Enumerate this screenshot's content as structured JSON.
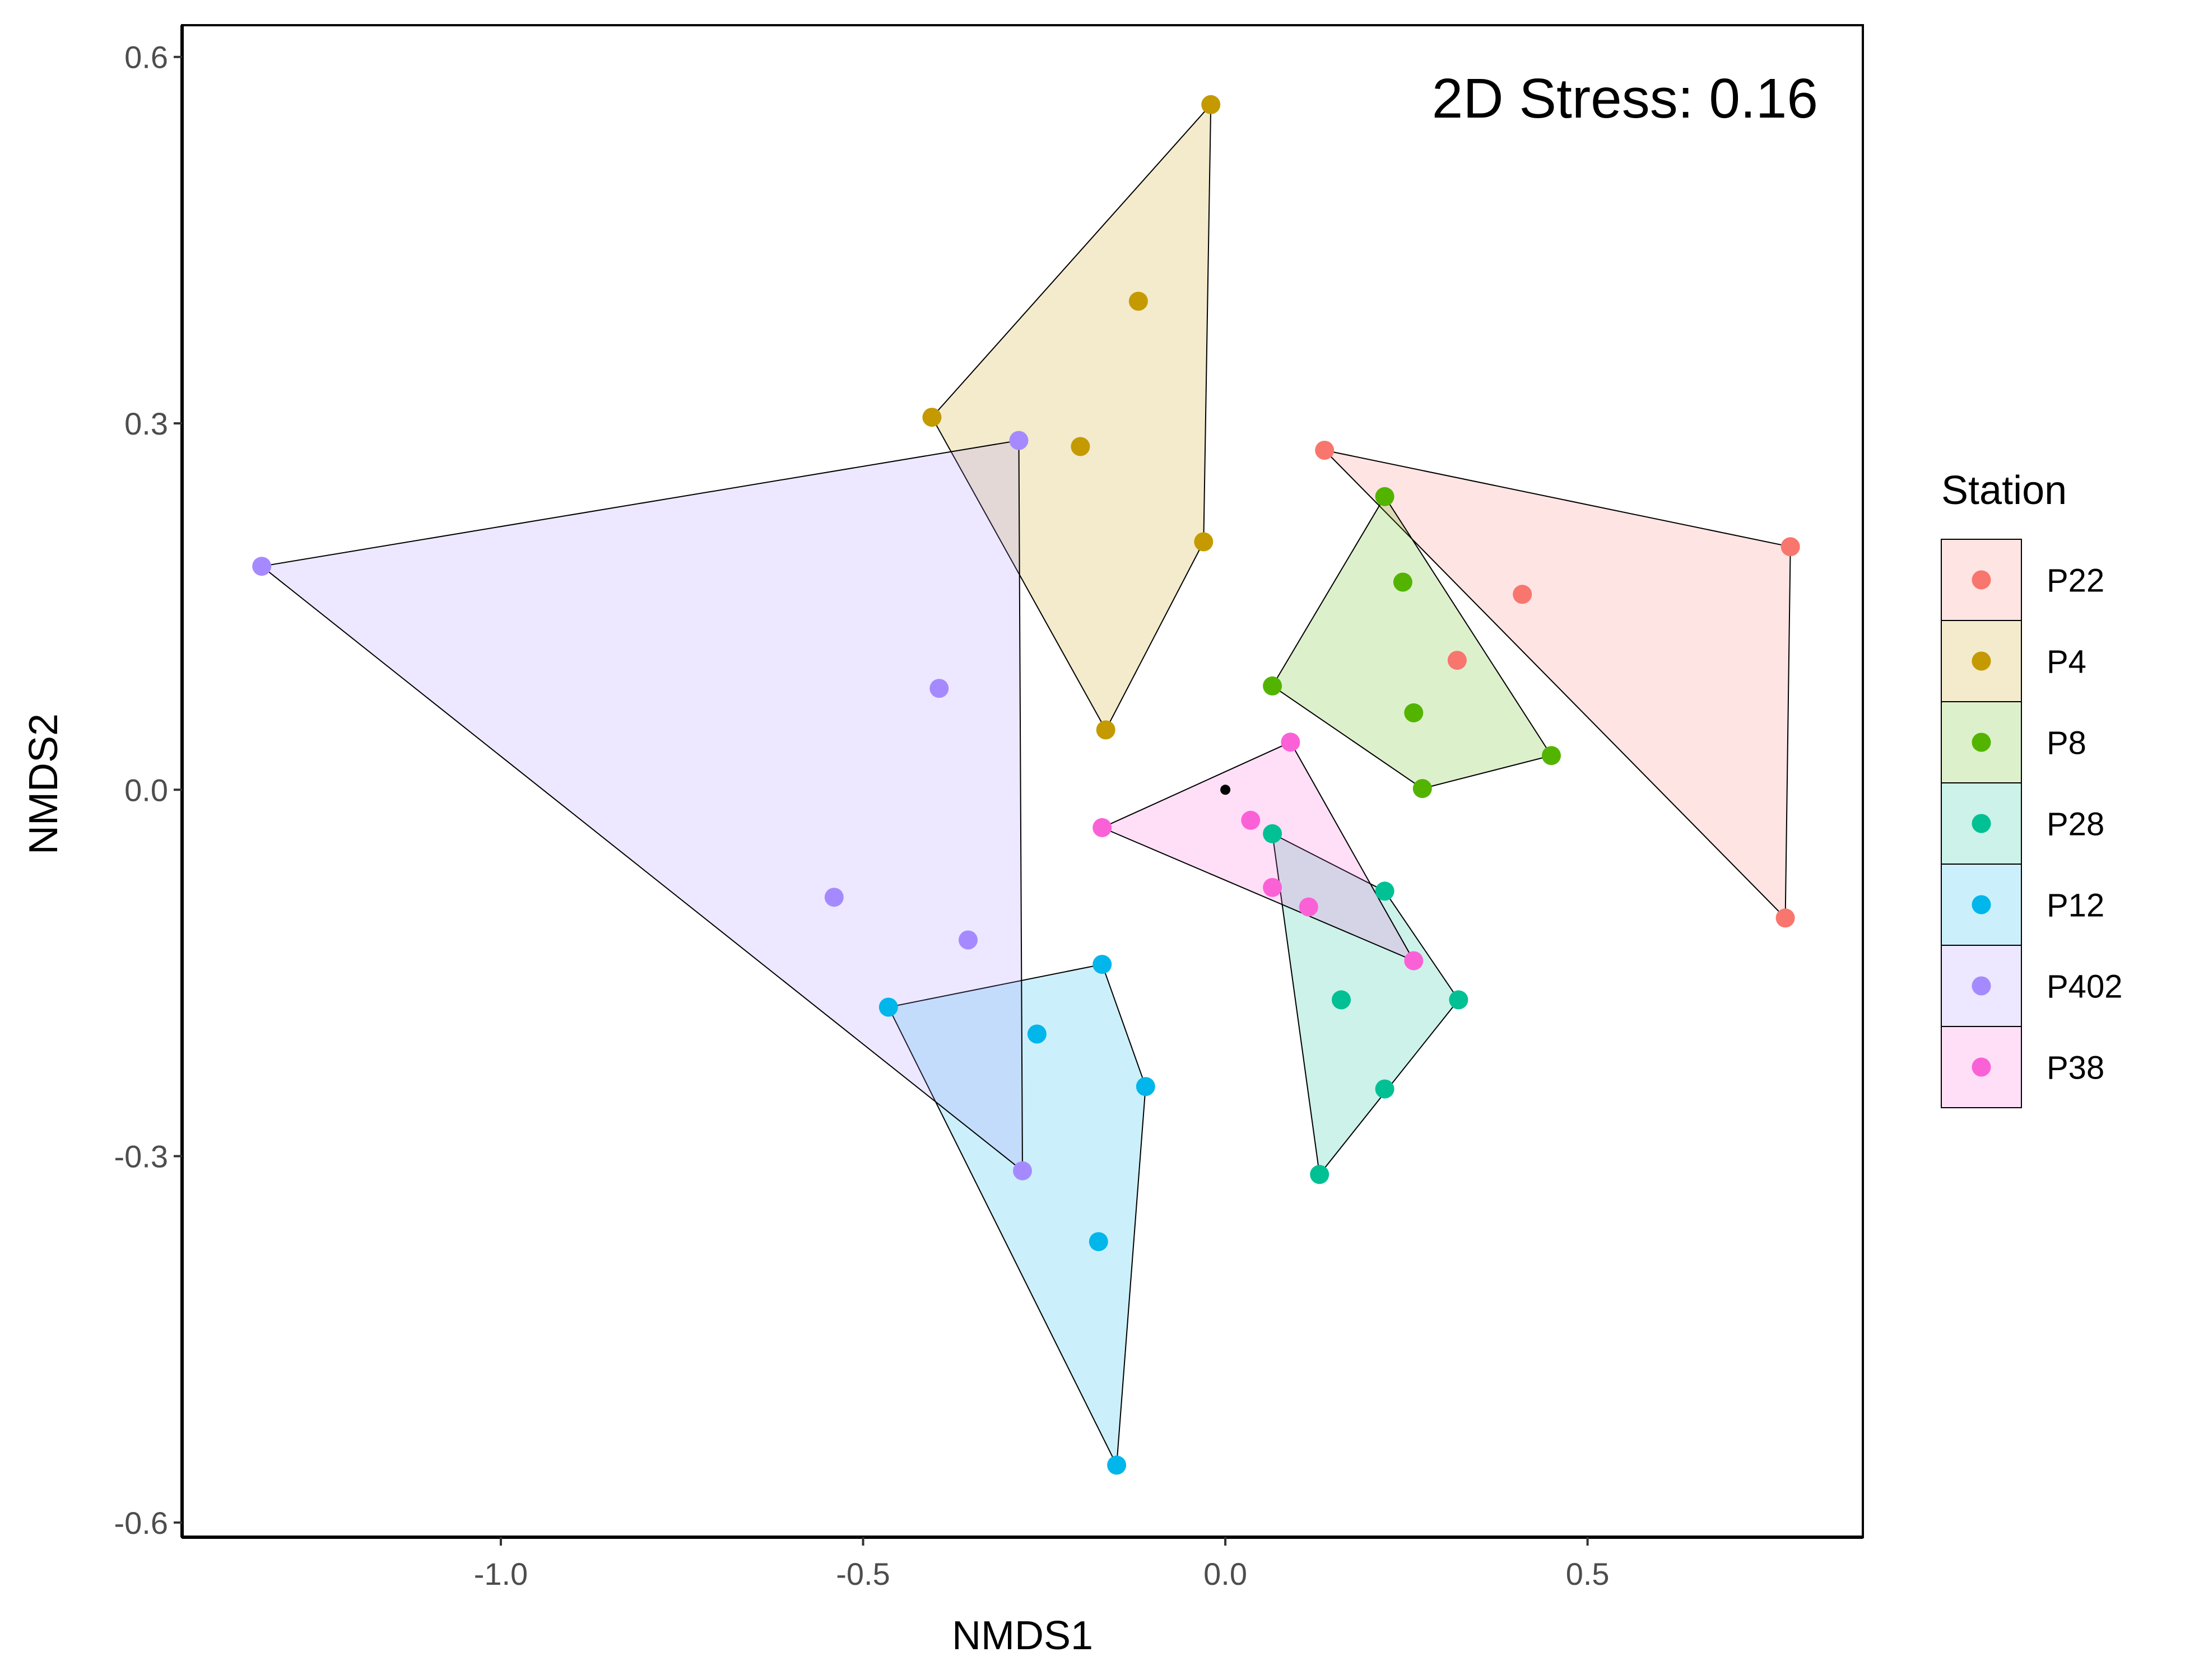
{
  "chart_data": {
    "type": "scatter",
    "title": "",
    "xlabel": "NMDS1",
    "ylabel": "NMDS2",
    "xlim": [
      -1.44,
      0.88
    ],
    "ylim": [
      -0.612,
      0.626
    ],
    "xticks": [
      -1.0,
      -0.5,
      0.0,
      0.5
    ],
    "xtick_labels": [
      "-1.0",
      "-0.5",
      "0.0",
      "0.5"
    ],
    "yticks": [
      -0.6,
      -0.3,
      0.0,
      0.3,
      0.6
    ],
    "ytick_labels": [
      "-0.6",
      "-0.3",
      "0.0",
      "0.3",
      "0.6"
    ],
    "grid": false,
    "annotation": "2D Stress: 0.16",
    "legend": {
      "title": "Station",
      "placement": "right"
    },
    "centroid_marker": [
      0.0,
      0.0
    ],
    "series": [
      {
        "name": "P22",
        "color": "#F8766D",
        "points": [
          [
            0.137,
            0.278
          ],
          [
            0.78,
            0.199
          ],
          [
            0.41,
            0.16
          ],
          [
            0.32,
            0.106
          ],
          [
            0.773,
            -0.105
          ]
        ],
        "hull": [
          [
            0.137,
            0.278
          ],
          [
            0.78,
            0.199
          ],
          [
            0.773,
            -0.105
          ]
        ]
      },
      {
        "name": "P4",
        "color": "#C49A00",
        "points": [
          [
            -0.02,
            0.561
          ],
          [
            -0.12,
            0.4
          ],
          [
            -0.405,
            0.305
          ],
          [
            -0.2,
            0.281
          ],
          [
            -0.03,
            0.203
          ],
          [
            -0.165,
            0.049
          ]
        ],
        "hull": [
          [
            -0.02,
            0.561
          ],
          [
            -0.03,
            0.203
          ],
          [
            -0.165,
            0.049
          ],
          [
            -0.405,
            0.305
          ]
        ]
      },
      {
        "name": "P8",
        "color": "#53B400",
        "points": [
          [
            0.22,
            0.24
          ],
          [
            0.245,
            0.17
          ],
          [
            0.065,
            0.085
          ],
          [
            0.26,
            0.063
          ],
          [
            0.45,
            0.028
          ],
          [
            0.272,
            0.001
          ]
        ],
        "hull": [
          [
            0.22,
            0.24
          ],
          [
            0.45,
            0.028
          ],
          [
            0.272,
            0.001
          ],
          [
            0.065,
            0.085
          ]
        ]
      },
      {
        "name": "P28",
        "color": "#00C094",
        "points": [
          [
            0.065,
            -0.036
          ],
          [
            0.22,
            -0.083
          ],
          [
            0.16,
            -0.172
          ],
          [
            0.322,
            -0.172
          ],
          [
            0.22,
            -0.245
          ],
          [
            0.13,
            -0.315
          ]
        ],
        "hull": [
          [
            0.065,
            -0.036
          ],
          [
            0.22,
            -0.083
          ],
          [
            0.322,
            -0.172
          ],
          [
            0.13,
            -0.315
          ]
        ]
      },
      {
        "name": "P12",
        "color": "#00B6EB",
        "points": [
          [
            -0.17,
            -0.143
          ],
          [
            -0.465,
            -0.178
          ],
          [
            -0.26,
            -0.2
          ],
          [
            -0.11,
            -0.243
          ],
          [
            -0.175,
            -0.37
          ],
          [
            -0.15,
            -0.553
          ]
        ],
        "hull": [
          [
            -0.17,
            -0.143
          ],
          [
            -0.11,
            -0.243
          ],
          [
            -0.15,
            -0.553
          ],
          [
            -0.465,
            -0.178
          ]
        ]
      },
      {
        "name": "P402",
        "color": "#A58AFF",
        "points": [
          [
            -0.285,
            0.286
          ],
          [
            -1.33,
            0.183
          ],
          [
            -0.395,
            0.083
          ],
          [
            -0.54,
            -0.088
          ],
          [
            -0.355,
            -0.123
          ],
          [
            -0.28,
            -0.312
          ]
        ],
        "hull": [
          [
            -0.285,
            0.286
          ],
          [
            -0.28,
            -0.312
          ],
          [
            -1.33,
            0.183
          ]
        ]
      },
      {
        "name": "P38",
        "color": "#FB61D7",
        "points": [
          [
            0.09,
            0.039
          ],
          [
            -0.17,
            -0.031
          ],
          [
            0.035,
            -0.025
          ],
          [
            0.065,
            -0.08
          ],
          [
            0.115,
            -0.096
          ],
          [
            0.26,
            -0.14
          ]
        ],
        "hull": [
          [
            0.09,
            0.039
          ],
          [
            0.26,
            -0.14
          ],
          [
            -0.17,
            -0.031
          ]
        ]
      }
    ]
  }
}
